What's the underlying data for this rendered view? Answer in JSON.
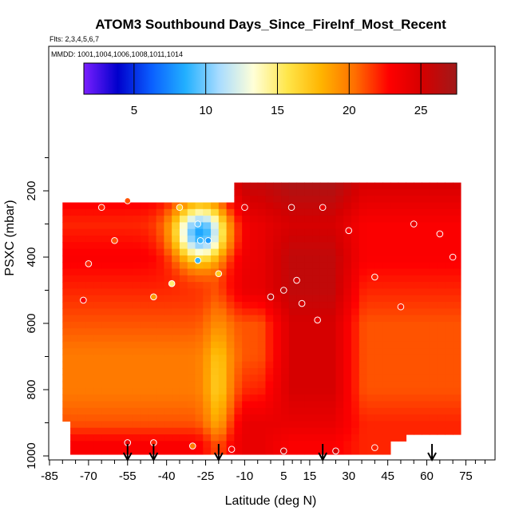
{
  "chart_data": {
    "type": "heatmap",
    "title": "ATOM3 Southbound Days_Since_FireInf_Most_Recent",
    "subtitle_flights": "Flts: 2,3,4,5,6,7",
    "subtitle_dates": "MMDD: 1001,1004,1006,1008,1011,1014",
    "xlabel": "Latitude (deg N)",
    "ylabel": "PSXC (mbar)",
    "xlim": [
      -85,
      85
    ],
    "ylim": [
      1000,
      0
    ],
    "x_ticks": [
      -85,
      -70,
      -55,
      -40,
      -25,
      -10,
      5,
      15,
      30,
      45,
      60,
      75
    ],
    "y_ticks": [
      1000,
      800,
      600,
      400,
      200
    ],
    "colorbar": {
      "range": [
        1.5,
        27.5
      ],
      "ticks": [
        5,
        10,
        15,
        20,
        25
      ],
      "stops": [
        "#7a1fff",
        "#0000cc",
        "#0a5fff",
        "#22b0ff",
        "#a9dcff",
        "#ffffd8",
        "#ffe64a",
        "#ffb400",
        "#ff6e00",
        "#ff0000",
        "#d40000",
        "#a01a1a"
      ]
    },
    "field_columns": [
      {
        "x_range": [
          -80,
          -15
        ],
        "p_range": [
          228,
          985
        ],
        "profile": [
          [
            228,
            23
          ],
          [
            300,
            22
          ],
          [
            400,
            23
          ],
          [
            500,
            22
          ],
          [
            600,
            21
          ],
          [
            700,
            20
          ],
          [
            800,
            20
          ],
          [
            900,
            21
          ],
          [
            960,
            23
          ]
        ]
      },
      {
        "x_range": [
          -15,
          2
        ],
        "p_range": [
          175,
          985
        ],
        "profile": [
          [
            175,
            26
          ],
          [
            300,
            24
          ],
          [
            400,
            24
          ],
          [
            500,
            24
          ],
          [
            600,
            21
          ],
          [
            700,
            21
          ],
          [
            800,
            22
          ],
          [
            900,
            24
          ],
          [
            960,
            24
          ]
        ]
      },
      {
        "x_range": [
          2,
          30
        ],
        "p_range": [
          175,
          985
        ],
        "profile": [
          [
            175,
            27
          ],
          [
            300,
            25
          ],
          [
            400,
            26
          ],
          [
            500,
            26
          ],
          [
            600,
            25
          ],
          [
            700,
            25
          ],
          [
            800,
            25
          ],
          [
            900,
            24
          ],
          [
            960,
            23
          ]
        ]
      },
      {
        "x_range": [
          30,
          72
        ],
        "p_range": [
          175,
          985
        ],
        "profile": [
          [
            175,
            25
          ],
          [
            300,
            23
          ],
          [
            400,
            23
          ],
          [
            500,
            22
          ],
          [
            600,
            21
          ],
          [
            700,
            21
          ],
          [
            800,
            21
          ],
          [
            900,
            22
          ],
          [
            960,
            22
          ]
        ]
      }
    ],
    "observations": [
      [
        -55,
        230,
        21
      ],
      [
        -35,
        250,
        17
      ],
      [
        -28,
        300,
        10
      ],
      [
        -27,
        350,
        9
      ],
      [
        -24,
        350,
        8
      ],
      [
        -28,
        410,
        9
      ],
      [
        -20,
        450,
        17
      ],
      [
        -38,
        480,
        15
      ],
      [
        -45,
        520,
        19
      ],
      [
        0,
        520,
        26
      ],
      [
        5,
        500,
        26
      ],
      [
        10,
        470,
        25
      ],
      [
        12,
        540,
        25
      ],
      [
        18,
        590,
        24
      ],
      [
        30,
        320,
        23
      ],
      [
        40,
        460,
        22
      ],
      [
        55,
        300,
        24
      ],
      [
        -10,
        250,
        24
      ],
      [
        8,
        250,
        26
      ],
      [
        20,
        250,
        24
      ],
      [
        -65,
        250,
        22
      ],
      [
        -60,
        350,
        21
      ],
      [
        -70,
        420,
        22
      ],
      [
        -72,
        530,
        23
      ],
      [
        -55,
        960,
        24
      ],
      [
        -45,
        960,
        22
      ],
      [
        -30,
        970,
        20
      ],
      [
        -15,
        980,
        23
      ],
      [
        5,
        985,
        25
      ],
      [
        25,
        985,
        25
      ],
      [
        40,
        975,
        22
      ],
      [
        50,
        550,
        22
      ],
      [
        65,
        330,
        23
      ],
      [
        70,
        400,
        23
      ]
    ],
    "arrows_latitude": [
      -55,
      -45,
      -20,
      20,
      62
    ]
  }
}
